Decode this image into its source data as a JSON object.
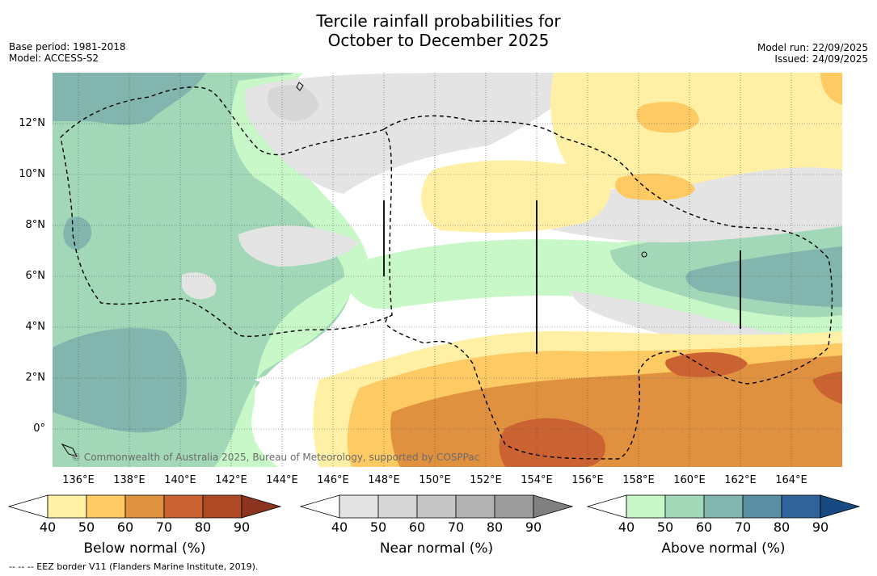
{
  "title": {
    "line1": "Tercile rainfall probabilities for",
    "line2": "October to December 2025"
  },
  "meta": {
    "base_period": "Base period: 1981-2018",
    "model": "Model: ACCESS-S2",
    "model_run": "Model run: 22/09/2025",
    "issued": "Issued: 24/09/2025"
  },
  "map": {
    "lat_labels": [
      "12°N",
      "10°N",
      "8°N",
      "6°N",
      "4°N",
      "2°N",
      "0°"
    ],
    "lon_labels": [
      "136°E",
      "138°E",
      "140°E",
      "142°E",
      "144°E",
      "146°E",
      "148°E",
      "150°E",
      "152°E",
      "154°E",
      "156°E",
      "158°E",
      "160°E",
      "162°E",
      "164°E"
    ],
    "copyright": "© Commonwealth of Australia 2025, Bureau of Meteorology, supported by COSPPac"
  },
  "legend": {
    "ticks": [
      "40",
      "50",
      "60",
      "70",
      "80",
      "90"
    ],
    "below": {
      "title": "Below normal (%)",
      "colors": [
        "#fff0a6",
        "#fdca63",
        "#e09140",
        "#cb6232",
        "#ad4a25",
        "#8b3520"
      ]
    },
    "near": {
      "title": "Near normal (%)",
      "colors": [
        "#e4e4e4",
        "#d6d6d6",
        "#c6c6c6",
        "#b2b2b2",
        "#9c9c9c",
        "#808080"
      ]
    },
    "above": {
      "title": "Above normal (%)",
      "colors": [
        "#c8f7c8",
        "#a2d7b8",
        "#82b5ad",
        "#5a8ea2",
        "#30639a",
        "#174a82"
      ]
    }
  },
  "footnote": "--  --  -- EEZ border V11 (Flanders Marine Institute, 2019)."
}
